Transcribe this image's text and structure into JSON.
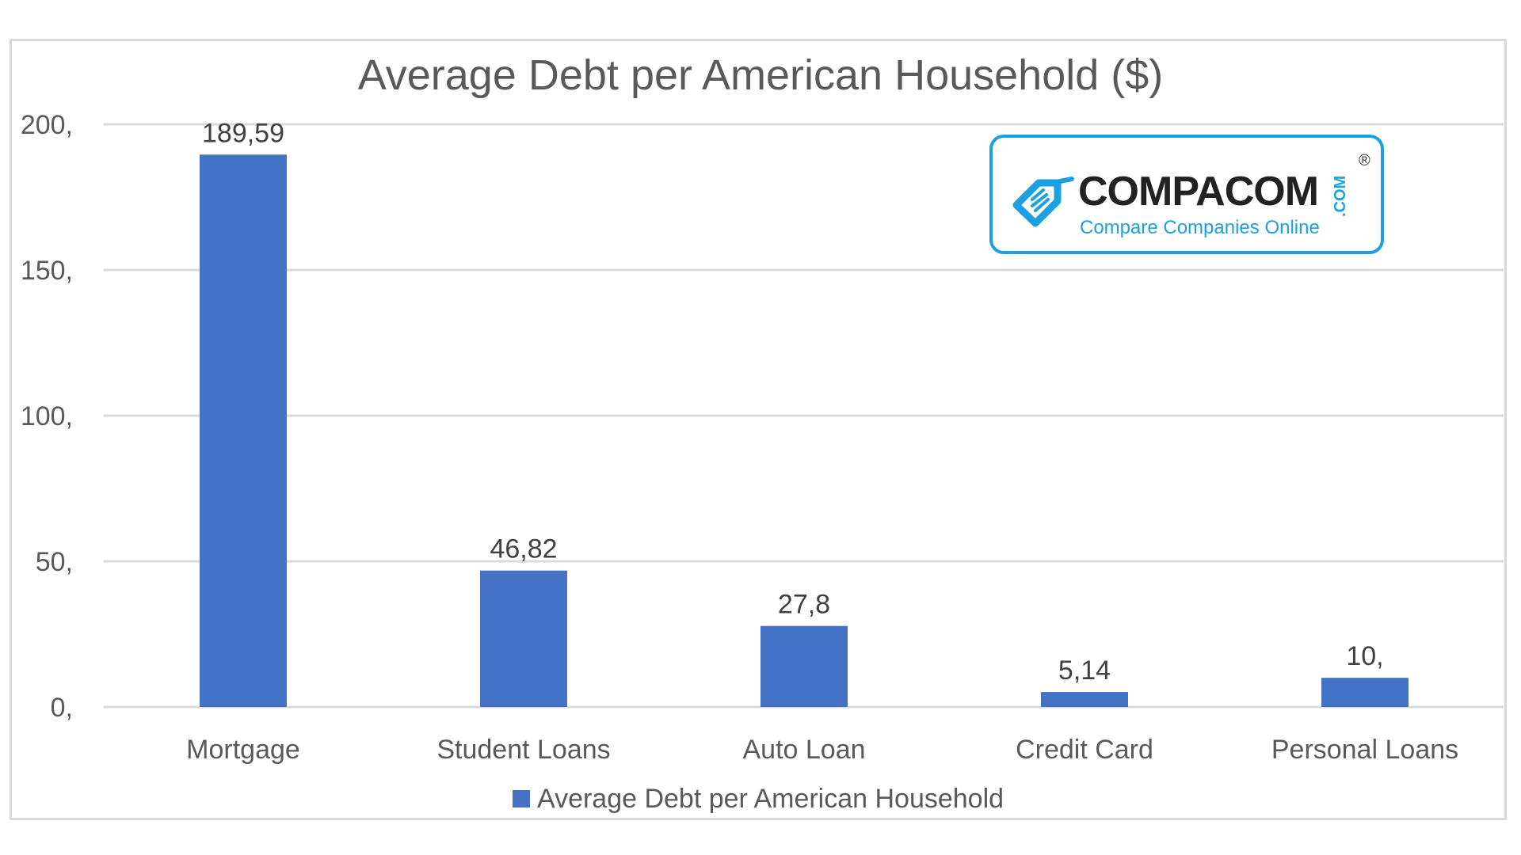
{
  "chart_data": {
    "type": "bar",
    "title": "Average Debt per American Household ($)",
    "categories": [
      "Mortgage",
      "Student Loans",
      "Auto Loan",
      "Credit Card",
      "Personal Loans"
    ],
    "series": [
      {
        "name": "Average Debt per American Household",
        "values": [
          189.59,
          46.82,
          27.8,
          5.14,
          10
        ],
        "color": "#4472C4"
      }
    ],
    "data_labels": [
      "189,59",
      "46,82",
      "27,8",
      "5,14",
      "10,"
    ],
    "yticks": [
      0,
      50,
      100,
      150,
      200
    ],
    "ytick_labels": [
      "0,",
      "50,",
      "100,",
      "150,",
      "200,"
    ],
    "ylim": [
      0,
      200
    ],
    "grid": true,
    "legend": "bottom",
    "xlabel": "",
    "ylabel": ""
  },
  "logo": {
    "brand": "COMPACOM",
    "tagline": "Compare Companies Online",
    "suffix": ".COM",
    "registered": "®",
    "color": "#1BA1E2"
  }
}
